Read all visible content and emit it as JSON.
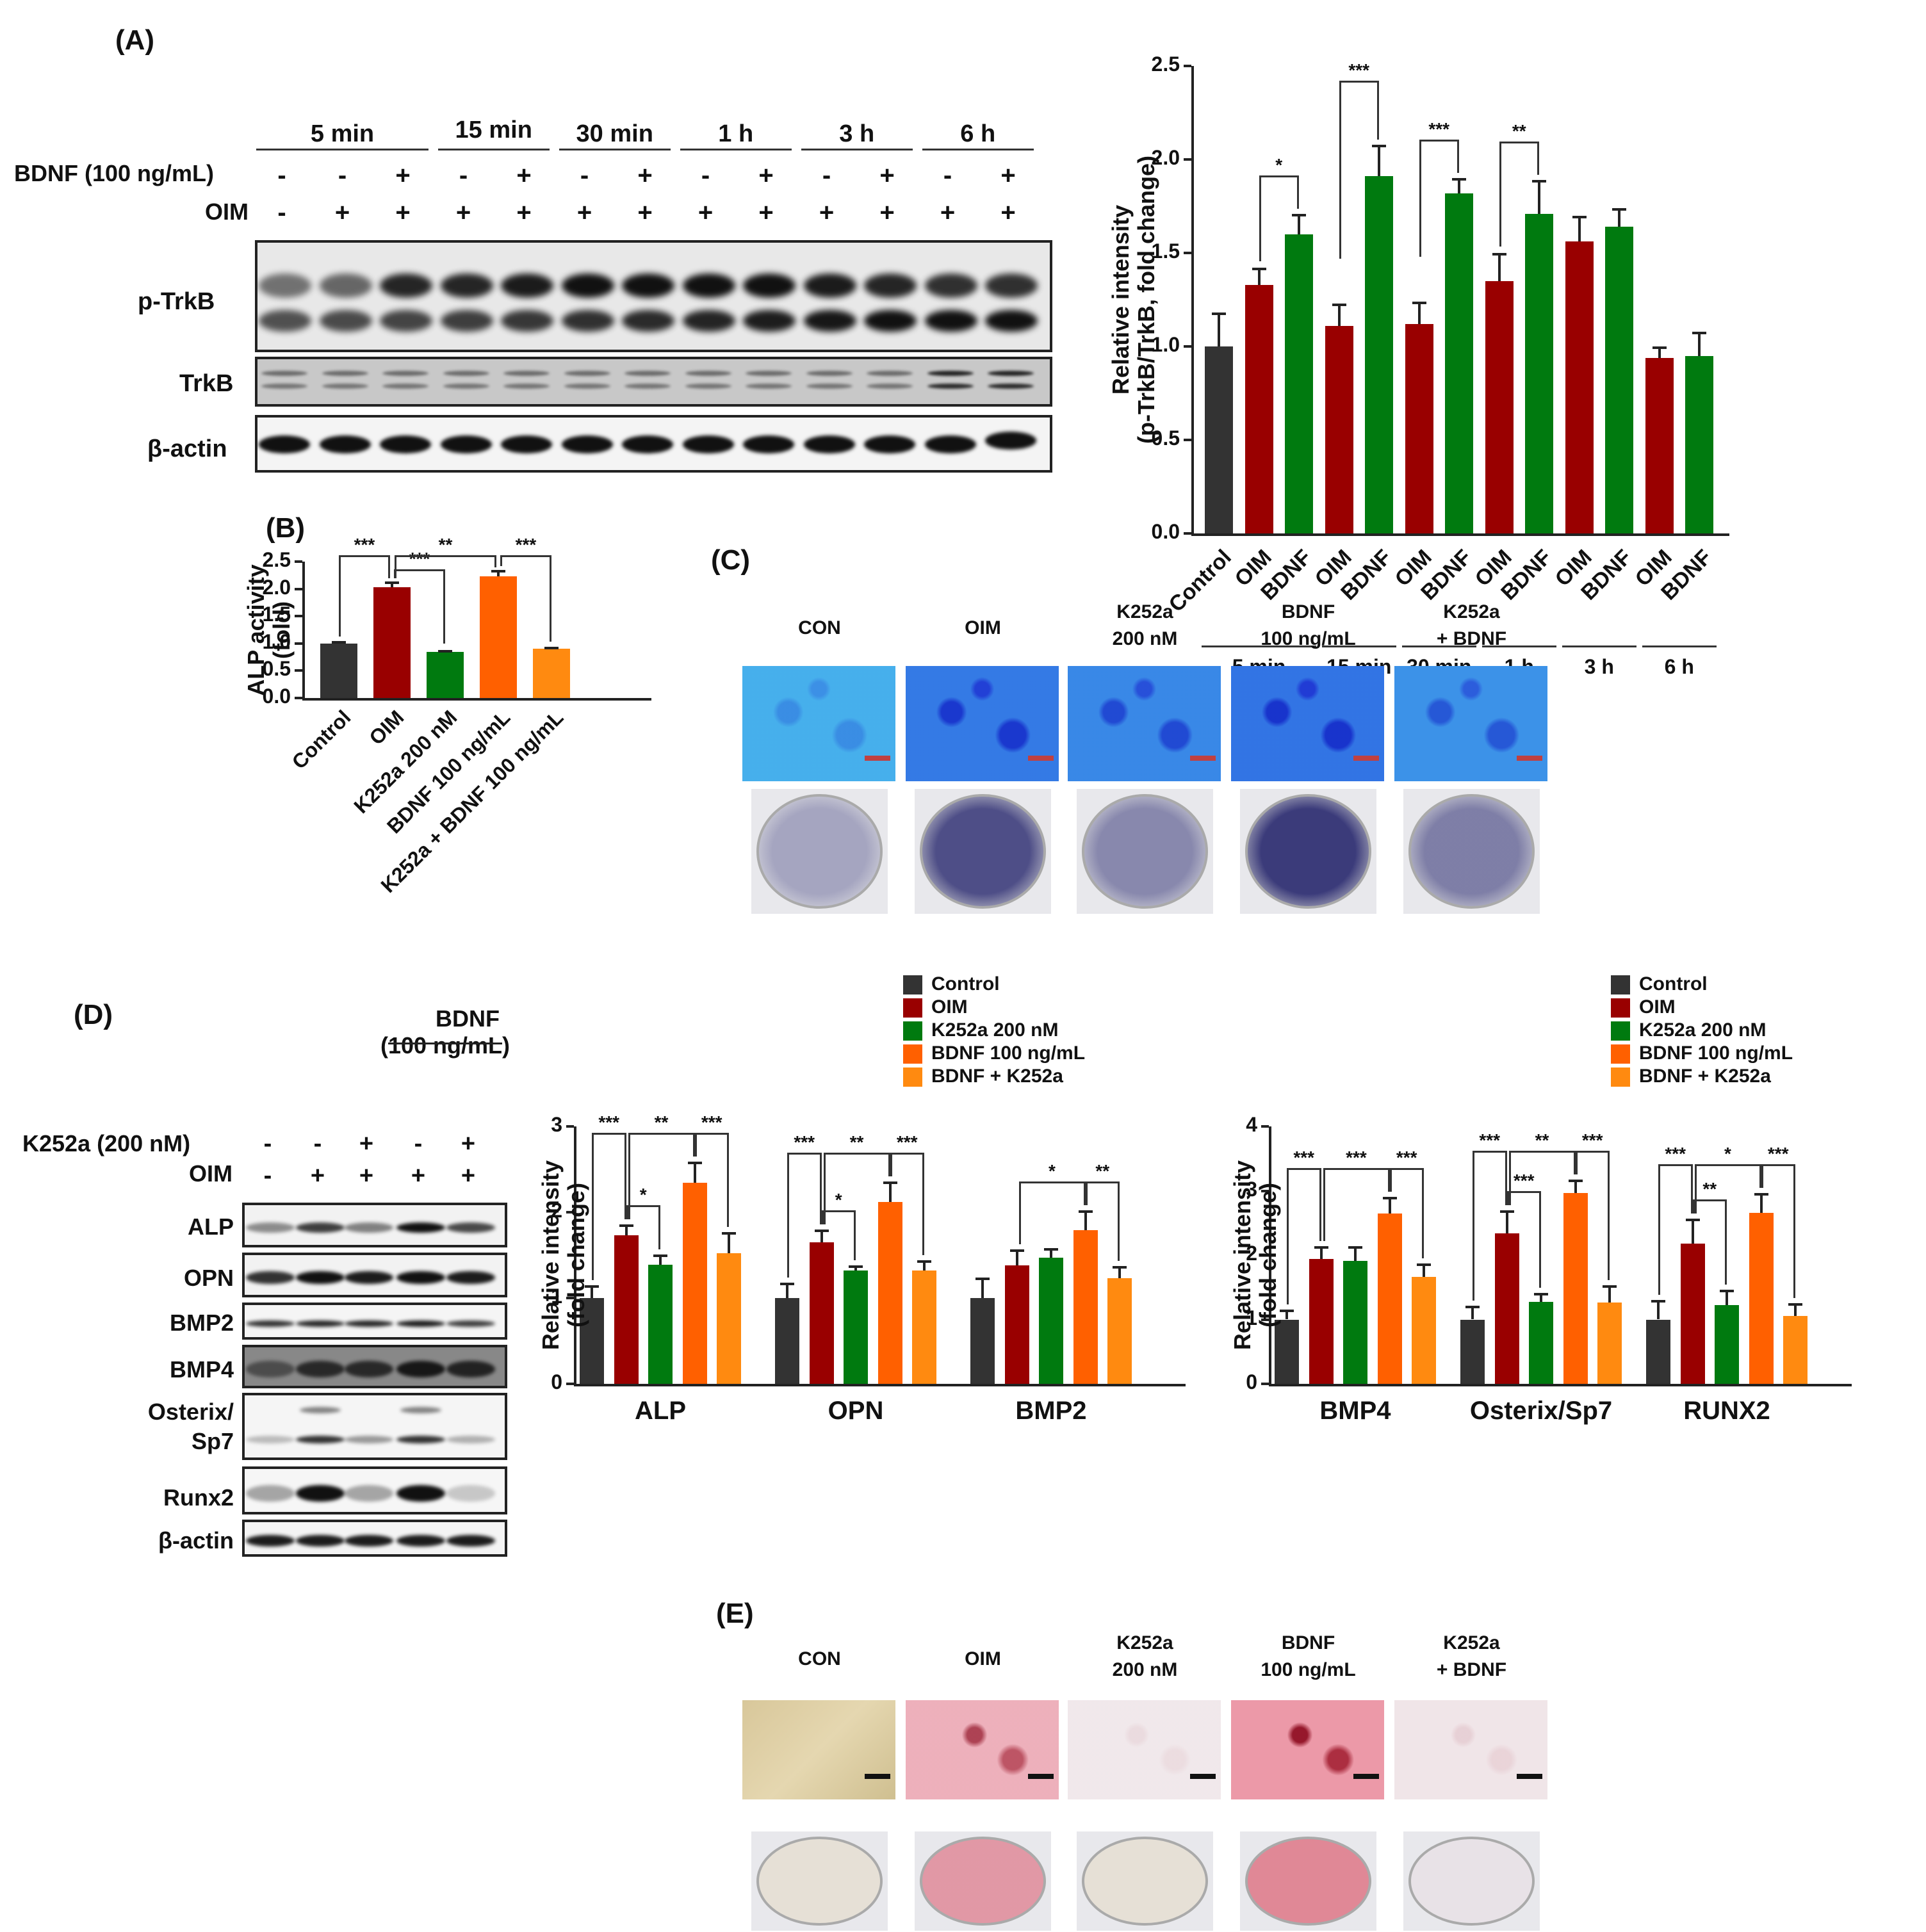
{
  "panels": {
    "A": {
      "label": "(A)",
      "timepoints": [
        "5 min",
        "15 min",
        "30 min",
        "1 h",
        "3 h",
        "6 h"
      ],
      "row_labels": {
        "bdnf": "BDNF (100 ng/mL)",
        "oim": "OIM"
      },
      "bdnf_signs": [
        "-",
        "-",
        "+",
        "-",
        "+",
        "-",
        "+",
        "-",
        "+",
        "-",
        "+",
        "-",
        "+"
      ],
      "oim_signs": [
        "-",
        "+",
        "+",
        "+",
        "+",
        "+",
        "+",
        "+",
        "+",
        "+",
        "+",
        "+",
        "+"
      ],
      "blots": [
        "p-TrkB",
        "TrkB",
        "β-actin"
      ]
    },
    "B": {
      "label": "(B)"
    },
    "C": {
      "label": "(C)",
      "columns": [
        {
          "l1": "CON",
          "l2": ""
        },
        {
          "l1": "OIM",
          "l2": ""
        },
        {
          "l1": "K252a",
          "l2": "200 nM"
        },
        {
          "l1": "BDNF",
          "l2": "100 ng/mL"
        },
        {
          "l1": "K252a",
          "l2": "+ BDNF"
        }
      ]
    },
    "D": {
      "label": "(D)",
      "bdnf_header_l1": "BDNF",
      "bdnf_header_l2": "(100 ng/mL)",
      "row_labels": {
        "k252a": "K252a (200 nM)",
        "oim": "OIM"
      },
      "k252a_signs": [
        "-",
        "-",
        "+",
        "-",
        "+"
      ],
      "oim_signs": [
        "-",
        "+",
        "+",
        "+",
        "+"
      ],
      "blots": [
        "ALP",
        "OPN",
        "BMP2",
        "BMP4",
        "Osterix/ Sp7",
        "Runx2",
        "β-actin"
      ]
    },
    "E": {
      "label": "(E)",
      "columns": [
        {
          "l1": "CON",
          "l2": ""
        },
        {
          "l1": "OIM",
          "l2": ""
        },
        {
          "l1": "K252a",
          "l2": "200 nM"
        },
        {
          "l1": "BDNF",
          "l2": "100 ng/mL"
        },
        {
          "l1": "K252a",
          "l2": "+ BDNF"
        }
      ]
    }
  },
  "legend": {
    "items": [
      {
        "label": "Control",
        "color": "#333333"
      },
      {
        "label": "OIM",
        "color": "#990000"
      },
      {
        "label": "K252a 200 nM",
        "color": "#007A0F"
      },
      {
        "label": "BDNF 100 ng/mL",
        "color": "#FF6000"
      },
      {
        "label": "BDNF + K252a",
        "color": "#FF8A10"
      }
    ]
  },
  "colors": {
    "control": "#333333",
    "oim": "#990000",
    "bdnf_green": "#007A0F",
    "k252a_green": "#007A0F",
    "bdnf_orange": "#FF6000",
    "combo_orange": "#FF8A10",
    "alp_blue": "#3060E0",
    "alizarin_red": "#E03050"
  },
  "chart_data": [
    {
      "id": "A",
      "type": "bar",
      "title": "",
      "ylabel": "Relative intensity (p-TrkB/TrkB, fold change)",
      "xlabel": "",
      "ylim": [
        0,
        2.5
      ],
      "yticks": [
        "0.0",
        "0.5",
        "1.0",
        "1.5",
        "2.0",
        "2.5"
      ],
      "categories": [
        "Control",
        "OIM",
        "BDNF",
        "OIM",
        "BDNF",
        "OIM",
        "BDNF",
        "OIM",
        "BDNF",
        "OIM",
        "BDNF",
        "OIM",
        "BDNF"
      ],
      "groups": [
        "5 min",
        "15 min",
        "30 min",
        "1 h",
        "3 h",
        "6 h"
      ],
      "values": [
        1.0,
        1.33,
        1.6,
        1.11,
        1.91,
        1.12,
        1.82,
        1.35,
        1.71,
        1.56,
        1.64,
        0.94,
        0.95
      ],
      "errors": [
        0.18,
        0.09,
        0.11,
        0.12,
        0.17,
        0.12,
        0.08,
        0.15,
        0.18,
        0.14,
        0.1,
        0.06,
        0.13
      ],
      "colors": [
        "#333333",
        "#990000",
        "#007A0F",
        "#990000",
        "#007A0F",
        "#990000",
        "#007A0F",
        "#990000",
        "#007A0F",
        "#990000",
        "#007A0F",
        "#990000",
        "#007A0F"
      ],
      "significance": [
        {
          "from": 1,
          "to": 2,
          "label": "*"
        },
        {
          "from": 3,
          "to": 4,
          "label": "***"
        },
        {
          "from": 5,
          "to": 6,
          "label": "***"
        },
        {
          "from": 7,
          "to": 8,
          "label": "**"
        }
      ]
    },
    {
      "id": "B",
      "type": "bar",
      "ylabel": "ALP activity (fold)",
      "ylim": [
        0,
        2.5
      ],
      "yticks": [
        "0.0",
        "0.5",
        "1.0",
        "1.5",
        "2.0",
        "2.5"
      ],
      "categories": [
        "Control",
        "OIM",
        "K252a 200 nM",
        "BDNF 100 ng/mL",
        "K252a + BDNF 100 ng/mL"
      ],
      "values": [
        1.0,
        2.03,
        0.84,
        2.23,
        0.9
      ],
      "errors": [
        0.05,
        0.11,
        0.04,
        0.12,
        0.04
      ],
      "colors": [
        "#333333",
        "#990000",
        "#007A0F",
        "#FF6000",
        "#FF8A10"
      ],
      "significance": [
        {
          "from": 0,
          "to": 1,
          "label": "***"
        },
        {
          "from": 1,
          "to": 2,
          "label": "***"
        },
        {
          "from": 1,
          "to": 3,
          "label": "**"
        },
        {
          "from": 3,
          "to": 4,
          "label": "***"
        }
      ]
    },
    {
      "id": "D1",
      "type": "bar",
      "ylabel": "Relative intensity (fold change)",
      "ylim": [
        0,
        3
      ],
      "yticks": [
        "0",
        "1",
        "2",
        "3"
      ],
      "categories": [
        "ALP",
        "OPN",
        "BMP2"
      ],
      "series": [
        {
          "name": "Control",
          "values": [
            1.0,
            1.0,
            1.0
          ],
          "errors": [
            0.15,
            0.18,
            0.24
          ]
        },
        {
          "name": "OIM",
          "values": [
            1.73,
            1.65,
            1.38
          ],
          "errors": [
            0.13,
            0.15,
            0.19
          ]
        },
        {
          "name": "K252a 200 nM",
          "values": [
            1.39,
            1.32,
            1.47
          ],
          "errors": [
            0.12,
            0.06,
            0.11
          ]
        },
        {
          "name": "BDNF 100 ng/mL",
          "values": [
            2.34,
            2.12,
            1.79
          ],
          "errors": [
            0.25,
            0.24,
            0.23
          ]
        },
        {
          "name": "BDNF + K252a",
          "values": [
            1.52,
            1.32,
            1.23
          ],
          "errors": [
            0.25,
            0.12,
            0.14
          ]
        }
      ],
      "significance": [
        {
          "group": "ALP",
          "pairs": [
            [
              "Control",
              "OIM",
              "***"
            ],
            [
              "OIM",
              "BDNF 100 ng/mL",
              "**"
            ],
            [
              "BDNF 100 ng/mL",
              "BDNF + K252a",
              "***"
            ],
            [
              "OIM",
              "K252a 200 nM",
              "*"
            ]
          ]
        },
        {
          "group": "OPN",
          "pairs": [
            [
              "Control",
              "OIM",
              "***"
            ],
            [
              "OIM",
              "BDNF 100 ng/mL",
              "**"
            ],
            [
              "BDNF 100 ng/mL",
              "BDNF + K252a",
              "***"
            ],
            [
              "OIM",
              "K252a 200 nM",
              "*"
            ]
          ]
        },
        {
          "group": "BMP2",
          "pairs": [
            [
              "OIM",
              "BDNF 100 ng/mL",
              "*"
            ],
            [
              "BDNF 100 ng/mL",
              "BDNF + K252a",
              "**"
            ]
          ]
        }
      ]
    },
    {
      "id": "D2",
      "type": "bar",
      "ylabel": "Relative intensity (fold change)",
      "ylim": [
        0,
        4
      ],
      "yticks": [
        "0",
        "1",
        "2",
        "3",
        "4"
      ],
      "categories": [
        "BMP4",
        "Osterix/Sp7",
        "RUNX2"
      ],
      "series": [
        {
          "name": "Control",
          "values": [
            1.0,
            1.0,
            1.0
          ],
          "errors": [
            0.15,
            0.21,
            0.3
          ]
        },
        {
          "name": "OIM",
          "values": [
            1.94,
            2.34,
            2.18
          ],
          "errors": [
            0.2,
            0.36,
            0.39
          ]
        },
        {
          "name": "K252a 200 nM",
          "values": [
            1.91,
            1.27,
            1.22
          ],
          "errors": [
            0.23,
            0.14,
            0.24
          ]
        },
        {
          "name": "BDNF 100 ng/mL",
          "values": [
            2.65,
            2.97,
            2.66
          ],
          "errors": [
            0.26,
            0.2,
            0.31
          ]
        },
        {
          "name": "BDNF + K252a",
          "values": [
            1.66,
            1.26,
            1.05
          ],
          "errors": [
            0.21,
            0.27,
            0.2
          ]
        }
      ],
      "significance": [
        {
          "group": "BMP4",
          "pairs": [
            [
              "Control",
              "OIM",
              "***"
            ],
            [
              "OIM",
              "BDNF 100 ng/mL",
              "***"
            ],
            [
              "BDNF 100 ng/mL",
              "BDNF + K252a",
              "***"
            ]
          ]
        },
        {
          "group": "Osterix/Sp7",
          "pairs": [
            [
              "Control",
              "OIM",
              "***"
            ],
            [
              "OIM",
              "BDNF 100 ng/mL",
              "**"
            ],
            [
              "BDNF 100 ng/mL",
              "BDNF + K252a",
              "***"
            ],
            [
              "OIM",
              "K252a 200 nM",
              "***"
            ]
          ]
        },
        {
          "group": "RUNX2",
          "pairs": [
            [
              "Control",
              "OIM",
              "***"
            ],
            [
              "OIM",
              "BDNF 100 ng/mL",
              "*"
            ],
            [
              "BDNF 100 ng/mL",
              "BDNF + K252a",
              "***"
            ],
            [
              "OIM",
              "K252a 200 nM",
              "**"
            ]
          ]
        }
      ]
    }
  ]
}
